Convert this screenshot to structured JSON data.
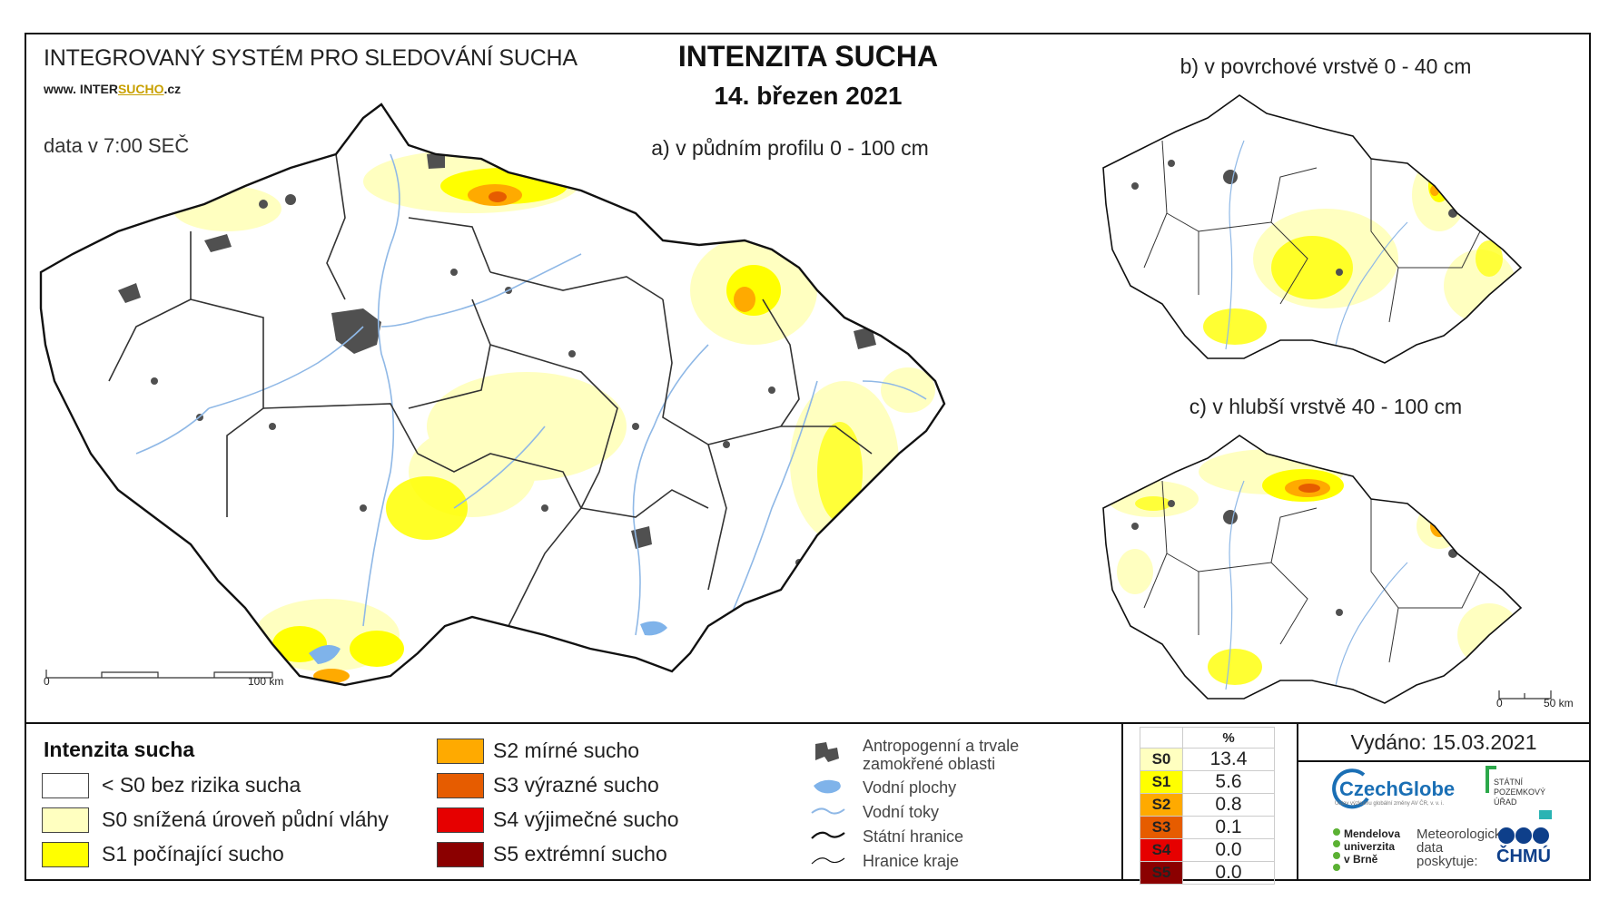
{
  "header": {
    "organization": "INTEGROVANÝ SYSTÉM PRO SLEDOVÁNÍ SUCHA",
    "website_prefix": "www. INTER",
    "website_highlight": "SUCHO",
    "website_suffix": ".cz",
    "data_time": "data v 7:00 SEČ",
    "title": "INTENZITA SUCHA",
    "date": "14. březen 2021"
  },
  "maps": {
    "main_subtitle": "a) v půdním profilu 0 - 100 cm",
    "surface_subtitle": "b) v povrchové vrstvě 0 - 40 cm",
    "deep_subtitle": "c) v hlubší vrstvě 40 - 100 cm",
    "main_scale": {
      "start": "0",
      "end": "100 km"
    },
    "small_scale": {
      "start": "0",
      "end": "50 km"
    }
  },
  "legend": {
    "title": "Intenzita sucha",
    "classes": [
      {
        "label": "< S0 bez rizika sucha",
        "color": "#ffffff"
      },
      {
        "label": "S0 snížená úroveň půdní vláhy",
        "color": "#ffffc0"
      },
      {
        "label": "S1 počínající sucho",
        "color": "#ffff00"
      },
      {
        "label": "S2 mírné sucho",
        "color": "#ffaa00"
      },
      {
        "label": "S3 výrazné sucho",
        "color": "#e65c00"
      },
      {
        "label": "S4 výjimečné sucho",
        "color": "#e60000"
      },
      {
        "label": "S5 extrémní sucho",
        "color": "#8b0000"
      }
    ],
    "symbols": [
      {
        "label": "Antropogenní a trvale\nzamokřené oblasti",
        "icon": "urban-area-icon"
      },
      {
        "label": "Vodní plochy",
        "icon": "water-body-icon"
      },
      {
        "label": "Vodní toky",
        "icon": "river-icon"
      },
      {
        "label": "Státní hranice",
        "icon": "state-border-icon"
      },
      {
        "label": "Hranice kraje",
        "icon": "region-border-icon"
      }
    ]
  },
  "percent_table": {
    "header": "%",
    "rows": [
      {
        "code": "S0",
        "value": "13.4",
        "color": "#ffffc0"
      },
      {
        "code": "S1",
        "value": "5.6",
        "color": "#ffff00"
      },
      {
        "code": "S2",
        "value": "0.8",
        "color": "#ffaa00"
      },
      {
        "code": "S3",
        "value": "0.1",
        "color": "#e65c00"
      },
      {
        "code": "S4",
        "value": "0.0",
        "color": "#e60000"
      },
      {
        "code": "S5",
        "value": "0.0",
        "color": "#8b0000"
      }
    ]
  },
  "footer": {
    "issued": "Vydáno: 15.03.2021",
    "czechglobe": "CzechGlobe",
    "czechglobe_sub": "Ústav výzkumu globální změny AV ČR, v. v. i.",
    "spu": "STÁTNÍ\nPOZEMKOVÝ\nÚŘAD",
    "mendelu": "Mendelova\nuniverzita\nv Brně",
    "meteo": "Meteorologická\ndata\nposkytuje:",
    "chmu": "ČHMÚ"
  }
}
